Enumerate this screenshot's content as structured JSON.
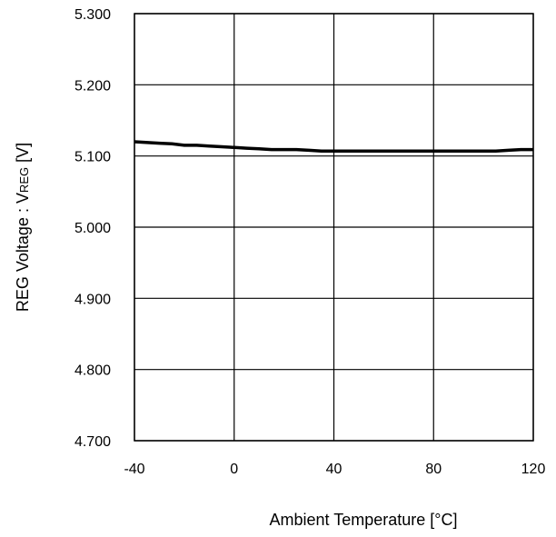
{
  "chart_data": {
    "type": "line",
    "xlabel": "Ambient Temperature [°C]",
    "ylabel_main": "REG Voltage : V",
    "ylabel_sub": "REG",
    "ylabel_unit": " [V]",
    "xlim": [
      -40,
      120
    ],
    "ylim": [
      4.7,
      5.3
    ],
    "x_ticks": [
      -40,
      0,
      40,
      80,
      120
    ],
    "x_tick_labels": [
      "-40",
      "0",
      "40",
      "80",
      "120"
    ],
    "y_ticks": [
      4.7,
      4.8,
      4.9,
      5.0,
      5.1,
      5.2,
      5.3
    ],
    "y_tick_labels": [
      "4.700",
      "4.800",
      "4.900",
      "5.000",
      "5.100",
      "5.200",
      "5.300"
    ],
    "grid": true,
    "series": [
      {
        "x": [
          -40,
          -30,
          -25,
          -20,
          -15,
          -10,
          -5,
          0,
          5,
          10,
          15,
          20,
          25,
          30,
          35,
          40,
          50,
          60,
          70,
          80,
          90,
          100,
          105,
          110,
          115,
          120
        ],
        "y": [
          5.12,
          5.118,
          5.117,
          5.115,
          5.115,
          5.114,
          5.113,
          5.112,
          5.111,
          5.11,
          5.109,
          5.109,
          5.109,
          5.108,
          5.107,
          5.107,
          5.107,
          5.107,
          5.107,
          5.107,
          5.107,
          5.107,
          5.107,
          5.108,
          5.109,
          5.109
        ],
        "color": "#000000"
      }
    ]
  }
}
